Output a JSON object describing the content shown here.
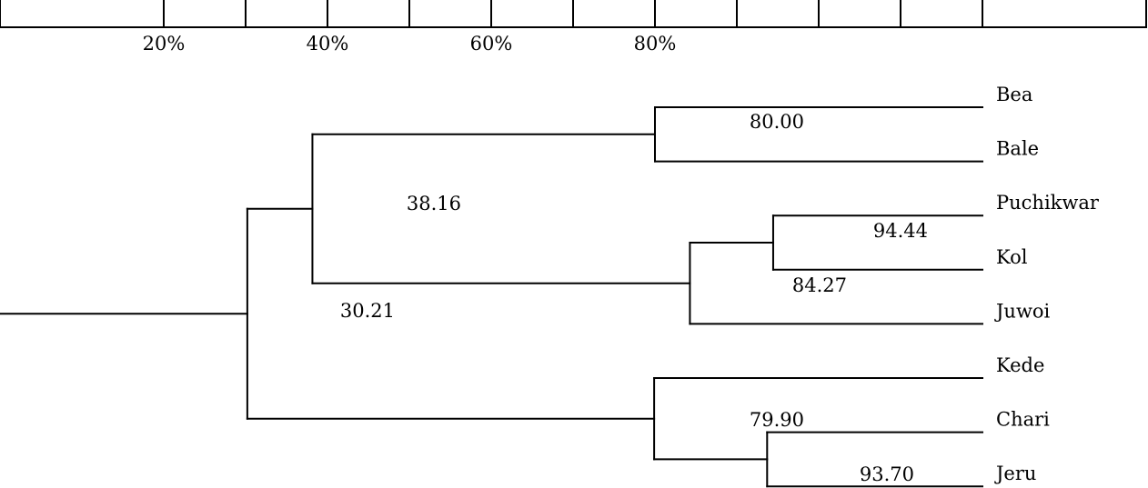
{
  "scale": {
    "tick_labels": [
      {
        "value": 20,
        "text": "20%"
      },
      {
        "value": 40,
        "text": "40%"
      },
      {
        "value": 60,
        "text": "60%"
      },
      {
        "value": 80,
        "text": "80%"
      }
    ]
  },
  "tree": {
    "leaves": [
      "Bea",
      "Bale",
      "Puchikwar",
      "Kol",
      "Juwoi",
      "Kede",
      "Chari",
      "Jeru"
    ],
    "nodes": [
      {
        "id": "n_bea_bale",
        "value": 80.0,
        "label": "80.00",
        "children": [
          "Bea",
          "Bale"
        ]
      },
      {
        "id": "n_puch_kol",
        "value": 94.44,
        "label": "94.44",
        "children": [
          "Puchikwar",
          "Kol"
        ]
      },
      {
        "id": "n_pk_juwoi",
        "value": 84.27,
        "label": "84.27",
        "children": [
          "n_puch_kol",
          "Juwoi"
        ]
      },
      {
        "id": "n_north",
        "value": 38.16,
        "label": "38.16",
        "children": [
          "n_bea_bale",
          "n_pk_juwoi"
        ]
      },
      {
        "id": "n_chari_jeru",
        "value": 93.7,
        "label": "93.70",
        "children": [
          "Chari",
          "Jeru"
        ]
      },
      {
        "id": "n_south",
        "value": 79.9,
        "label": "79.90",
        "children": [
          "Kede",
          "n_chari_jeru"
        ]
      },
      {
        "id": "n_root",
        "value": 30.21,
        "label": "30.21",
        "children": [
          "n_north",
          "n_south"
        ]
      }
    ]
  }
}
